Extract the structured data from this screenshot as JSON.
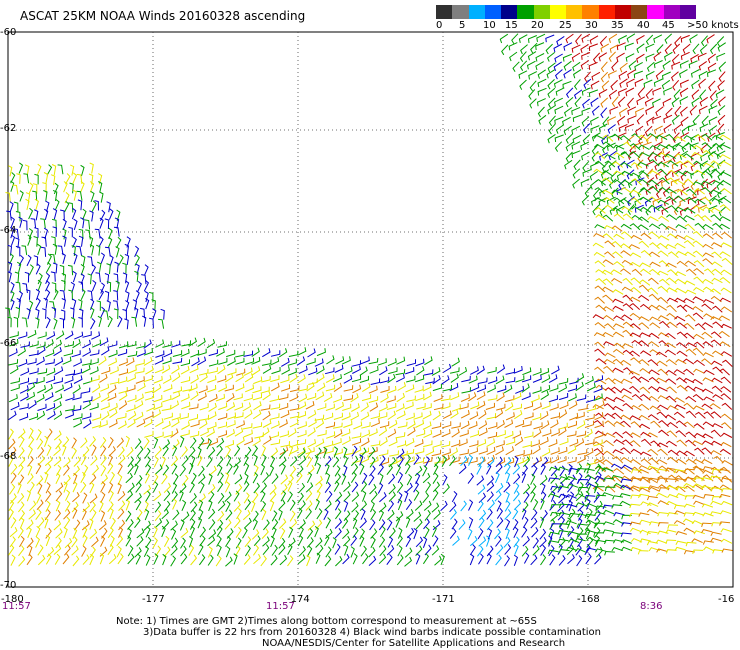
{
  "title": "ASCAT 25KM NOAA Winds 20160328 ascending",
  "legend": {
    "labels": [
      "0",
      "5",
      "10",
      "15",
      "20",
      "25",
      "30",
      "35",
      "40",
      "45",
      ">50 knots"
    ],
    "colors": [
      "#303030",
      "#7f7f7f",
      "#00b0ff",
      "#0060ff",
      "#00008b",
      "#00a000",
      "#80d000",
      "#ffff00",
      "#ffc000",
      "#ff8000",
      "#ff2000",
      "#c00000",
      "#8b4513",
      "#ff00ff",
      "#a000c0",
      "#6000a0"
    ]
  },
  "lat_ticks": [
    "-60",
    "-62",
    "-64",
    "-66",
    "-68",
    "-70"
  ],
  "lon_ticks": [
    "-180",
    "-177",
    "-174",
    "-171",
    "-168",
    "-16"
  ],
  "times": [
    "11:57",
    "11:57",
    "8:36"
  ],
  "notes": [
    "Note: 1) Times are GMT 2)Times along bottom correspond to measurement at ~65S",
    "3)Data buffer is 22 hrs from 20160328 4) Black wind barbs indicate possible contamination",
    "NOAA/NESDIS/Center for Satellite Applications and Research"
  ],
  "wind_colors": {
    "blue": "#0000cc",
    "green": "#00a000",
    "yellow": "#e8e800",
    "orange": "#e08000",
    "red": "#c00000",
    "cyan": "#00b0ff"
  }
}
